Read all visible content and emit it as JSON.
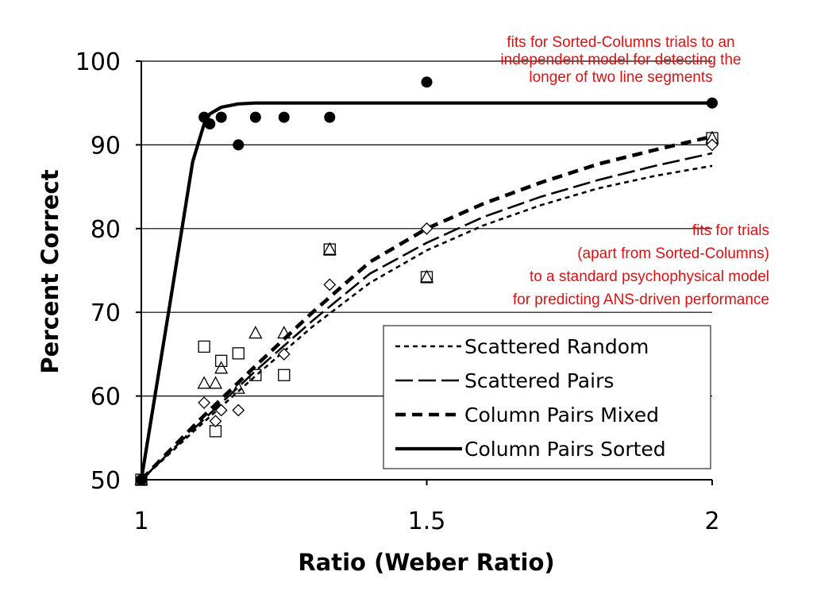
{
  "chart_data": {
    "type": "scatter",
    "xlabel": "Ratio (Weber Ratio)",
    "ylabel": "Percent Correct",
    "xlim": [
      1,
      2
    ],
    "ylim": [
      50,
      100
    ],
    "x_ticks": [
      "1",
      "1.5",
      "2"
    ],
    "y_ticks": [
      "50",
      "60",
      "70",
      "80",
      "90",
      "100"
    ],
    "grid": "horizontal",
    "legend_position": "bottom-right",
    "series": [
      {
        "name": "Scattered Random",
        "line_style": "short-dash",
        "marker": "square",
        "points": [
          [
            1.0,
            50
          ],
          [
            1.11,
            65.9
          ],
          [
            1.13,
            55.8
          ],
          [
            1.14,
            64.2
          ],
          [
            1.17,
            65.1
          ],
          [
            1.2,
            62.5
          ],
          [
            1.25,
            62.5
          ],
          [
            1.33,
            77.5
          ],
          [
            1.5,
            74.2
          ],
          [
            2.0,
            90.8
          ]
        ],
        "fit": [
          [
            1.0,
            50
          ],
          [
            1.1,
            56.3
          ],
          [
            1.2,
            62.4
          ],
          [
            1.3,
            68.3
          ],
          [
            1.4,
            73.5
          ],
          [
            1.5,
            77.4
          ],
          [
            1.6,
            80.4
          ],
          [
            1.7,
            82.8
          ],
          [
            1.8,
            84.8
          ],
          [
            1.9,
            86.3
          ],
          [
            2.0,
            87.5
          ]
        ]
      },
      {
        "name": "Scattered Pairs",
        "line_style": "long-dash",
        "marker": "triangle",
        "points": [
          [
            1.0,
            50
          ],
          [
            1.11,
            61.5
          ],
          [
            1.13,
            61.5
          ],
          [
            1.14,
            63.3
          ],
          [
            1.17,
            60.9
          ],
          [
            1.2,
            67.5
          ],
          [
            1.25,
            67.5
          ],
          [
            1.33,
            77.5
          ],
          [
            1.5,
            74.2
          ],
          [
            2.0,
            90.8
          ]
        ],
        "fit": [
          [
            1.0,
            50
          ],
          [
            1.1,
            56.6
          ],
          [
            1.2,
            63.0
          ],
          [
            1.3,
            69.0
          ],
          [
            1.4,
            74.6
          ],
          [
            1.5,
            78.3
          ],
          [
            1.6,
            81.4
          ],
          [
            1.7,
            83.8
          ],
          [
            1.8,
            85.8
          ],
          [
            1.9,
            87.5
          ],
          [
            2.0,
            89.0
          ]
        ]
      },
      {
        "name": "Column Pairs Mixed",
        "line_style": "heavy-dash",
        "marker": "diamond",
        "points": [
          [
            1.0,
            50
          ],
          [
            1.11,
            59.2
          ],
          [
            1.13,
            57.0
          ],
          [
            1.14,
            58.3
          ],
          [
            1.17,
            58.3
          ],
          [
            1.25,
            65.0
          ],
          [
            1.33,
            73.3
          ],
          [
            1.5,
            80.0
          ],
          [
            2.0,
            90.0
          ]
        ],
        "fit": [
          [
            1.0,
            50
          ],
          [
            1.1,
            57.0
          ],
          [
            1.2,
            63.6
          ],
          [
            1.3,
            70.0
          ],
          [
            1.4,
            76.0
          ],
          [
            1.5,
            80.0
          ],
          [
            1.6,
            83.0
          ],
          [
            1.7,
            85.5
          ],
          [
            1.8,
            87.7
          ],
          [
            1.9,
            89.4
          ],
          [
            2.0,
            91.0
          ]
        ]
      },
      {
        "name": "Column Pairs Sorted",
        "line_style": "solid",
        "marker": "filled-circle",
        "points": [
          [
            1.0,
            50
          ],
          [
            1.11,
            93.3
          ],
          [
            1.12,
            92.5
          ],
          [
            1.14,
            93.3
          ],
          [
            1.17,
            90.0
          ],
          [
            1.2,
            93.3
          ],
          [
            1.25,
            93.3
          ],
          [
            1.33,
            93.3
          ],
          [
            1.5,
            97.5
          ],
          [
            2.0,
            95.0
          ]
        ],
        "fit": [
          [
            1.0,
            50
          ],
          [
            1.05,
            71
          ],
          [
            1.09,
            88
          ],
          [
            1.11,
            92.5
          ],
          [
            1.12,
            93.7
          ],
          [
            1.14,
            94.5
          ],
          [
            1.17,
            94.9
          ],
          [
            1.2,
            95.0
          ],
          [
            2.0,
            95.0
          ]
        ]
      }
    ],
    "annotations": [
      {
        "id": "sorted",
        "lines": [
          "fits for Sorted-Columns trials to an",
          "independent model for detecting the",
          "longer of two line segments"
        ],
        "color": "#e01010"
      },
      {
        "id": "others",
        "lines": [
          "fits for trials",
          "(apart from Sorted-Columns)",
          "to a standard psychophysical model",
          "for predicting ANS-driven performance"
        ],
        "color": "#e01010"
      }
    ]
  }
}
